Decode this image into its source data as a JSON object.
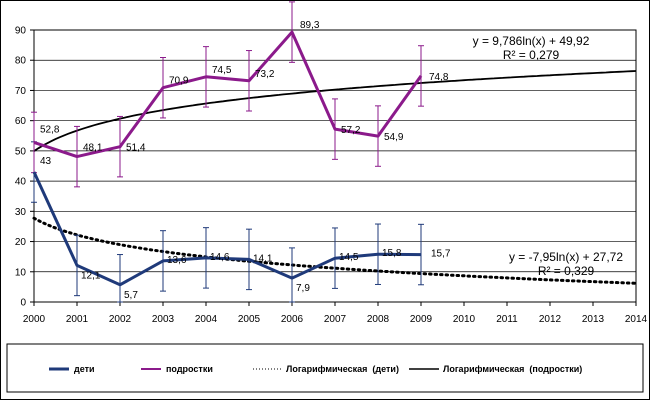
{
  "chart_data": {
    "type": "line",
    "x": [
      2000,
      2001,
      2002,
      2003,
      2004,
      2005,
      2006,
      2007,
      2008,
      2009
    ],
    "x_ticks": [
      "2000",
      "2001",
      "2002",
      "2003",
      "2004",
      "2005",
      "2006",
      "2007",
      "2008",
      "2009",
      "2010",
      "2011",
      "2012",
      "2013",
      "2014"
    ],
    "xlim": [
      2000,
      2014
    ],
    "ylim": [
      0,
      90
    ],
    "y_ticks": [
      "0",
      "10",
      "20",
      "30",
      "40",
      "50",
      "60",
      "70",
      "80",
      "90"
    ],
    "grid": "horizontal",
    "legend_position": "bottom",
    "series": [
      {
        "name": "дети",
        "color": "#1f3a7a",
        "values": [
          43,
          12.1,
          5.7,
          13.6,
          14.6,
          14.1,
          7.9,
          14.5,
          15.8,
          15.7
        ],
        "labels": [
          "43",
          "12,1",
          "5,7",
          "13,6",
          "14,6",
          "14,1",
          "7,9",
          "14,5",
          "15,8",
          "15,7"
        ],
        "error": 10
      },
      {
        "name": "подростки",
        "color": "#8b1a8b",
        "values": [
          52.8,
          48.1,
          51.4,
          70.9,
          74.5,
          73.2,
          89.3,
          57.2,
          54.9,
          74.8
        ],
        "labels": [
          "52,8",
          "48,1",
          "51,4",
          "70,9",
          "74,5",
          "73,2",
          "89,3",
          "57,2",
          "54,9",
          "74,8"
        ],
        "error": 10
      }
    ],
    "trendlines": [
      {
        "name": "Логарифмическая  (дети)",
        "type": "logarithmic",
        "style": "dotted",
        "color": "#000000",
        "a": -7.95,
        "b": 27.72,
        "equation": "y = -7,95ln(x) + 27,72",
        "r2": "R² = 0,329"
      },
      {
        "name": "Логарифмическая  (подростки)",
        "type": "logarithmic",
        "style": "solid",
        "color": "#000000",
        "a": 9.786,
        "b": 49.92,
        "equation": "y = 9,786ln(x) + 49,92",
        "r2": "R² = 0,279"
      }
    ]
  }
}
